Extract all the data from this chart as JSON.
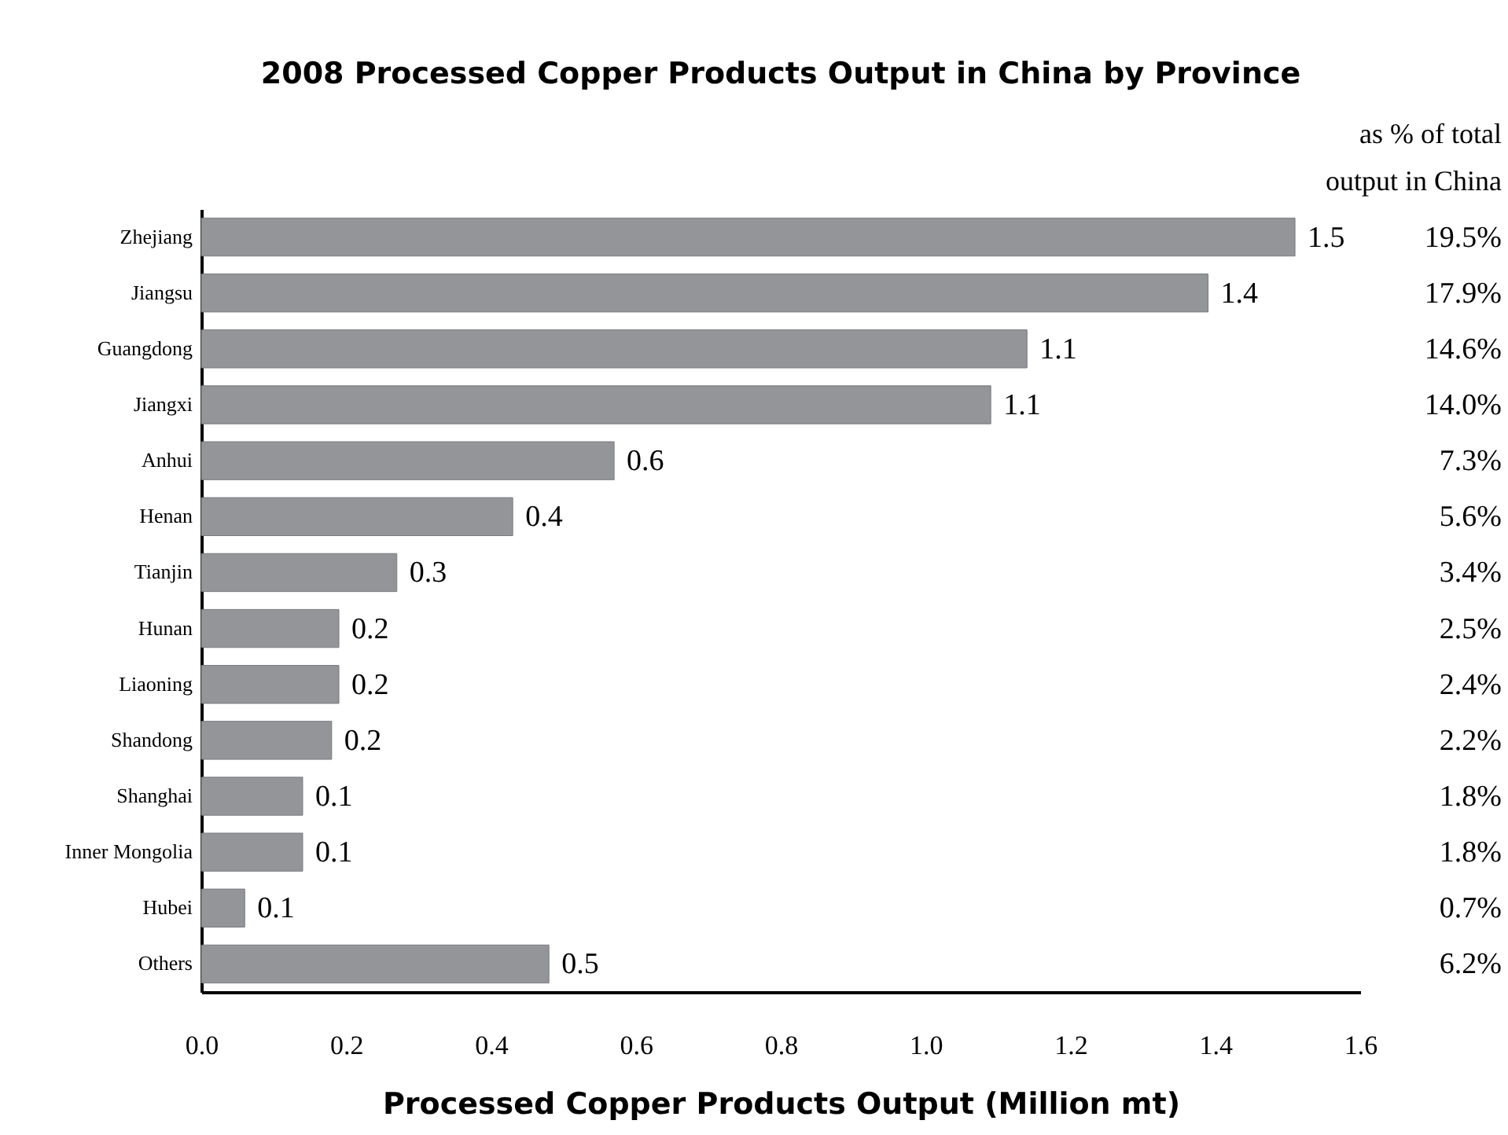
{
  "chart_data": {
    "type": "bar",
    "orientation": "horizontal",
    "title": "2008 Processed Copper Products Output in China by Province",
    "xlabel": "Processed Copper Products Output (Million mt)",
    "categories": [
      "Zhejiang",
      "Jiangsu",
      "Guangdong",
      "Jiangxi",
      "Anhui",
      "Henan",
      "Tianjin",
      "Hunan",
      "Liaoning",
      "Shandong",
      "Shanghai",
      "Inner Mongolia",
      "Hubei",
      "Others"
    ],
    "values": [
      1.51,
      1.39,
      1.14,
      1.09,
      0.57,
      0.43,
      0.27,
      0.19,
      0.19,
      0.18,
      0.14,
      0.14,
      0.06,
      0.48
    ],
    "value_labels": [
      "1.5",
      "1.4",
      "1.1",
      "1.1",
      "0.6",
      "0.4",
      "0.3",
      "0.2",
      "0.2",
      "0.2",
      "0.1",
      "0.1",
      "0.1",
      "0.5"
    ],
    "color": "#939598",
    "xlim": [
      0,
      1.6
    ],
    "xticks": [
      {
        "value": 0,
        "label": "0.0"
      },
      0.2,
      0.4,
      0.6,
      0.8,
      {
        "value": 1,
        "label": "1.0"
      },
      1.2,
      1.4,
      1.6
    ],
    "grid": false,
    "annotations": [
      "as % of total output in China",
      "19.5%",
      "17.9%",
      "14.6%",
      "14.0%",
      "7.3%",
      "5.6%",
      "3.4%",
      "2.5%",
      "2.4%",
      "2.2%",
      "1.8%",
      "1.8%",
      "0.7%",
      "6.2%"
    ]
  }
}
